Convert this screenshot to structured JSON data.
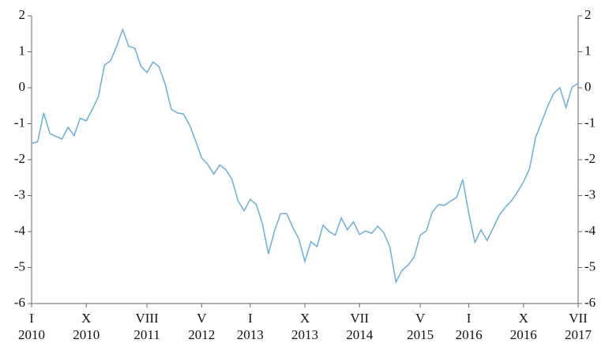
{
  "chart_data": {
    "type": "line",
    "x": [
      "2010-01",
      "2010-02",
      "2010-03",
      "2010-04",
      "2010-05",
      "2010-06",
      "2010-07",
      "2010-08",
      "2010-09",
      "2010-10",
      "2010-11",
      "2010-12",
      "2011-01",
      "2011-02",
      "2011-03",
      "2011-04",
      "2011-05",
      "2011-06",
      "2011-07",
      "2011-08",
      "2011-09",
      "2011-10",
      "2011-11",
      "2011-12",
      "2012-01",
      "2012-02",
      "2012-03",
      "2012-04",
      "2012-05",
      "2012-06",
      "2012-07",
      "2012-08",
      "2012-09",
      "2012-10",
      "2012-11",
      "2012-12",
      "2013-01",
      "2013-02",
      "2013-03",
      "2013-04",
      "2013-05",
      "2013-06",
      "2013-07",
      "2013-08",
      "2013-09",
      "2013-10",
      "2013-11",
      "2013-12",
      "2014-01",
      "2014-02",
      "2014-03",
      "2014-04",
      "2014-05",
      "2014-06",
      "2014-07",
      "2014-08",
      "2014-09",
      "2014-10",
      "2014-11",
      "2014-12",
      "2015-01",
      "2015-02",
      "2015-03",
      "2015-04",
      "2015-05",
      "2015-06",
      "2015-07",
      "2015-08",
      "2015-09",
      "2015-10",
      "2015-11",
      "2015-12",
      "2016-01",
      "2016-02",
      "2016-03",
      "2016-04",
      "2016-05",
      "2016-06",
      "2016-07",
      "2016-08",
      "2016-09",
      "2016-10",
      "2016-11",
      "2016-12",
      "2017-01",
      "2017-02",
      "2017-03",
      "2017-04",
      "2017-05",
      "2017-06",
      "2017-07"
    ],
    "series": [
      {
        "color": "#6baed6",
        "values": [
          -1.55,
          -1.5,
          -0.7,
          -1.27,
          -1.35,
          -1.43,
          -1.1,
          -1.33,
          -0.85,
          -0.92,
          -0.6,
          -0.25,
          0.63,
          0.75,
          1.15,
          1.62,
          1.15,
          1.1,
          0.6,
          0.42,
          0.72,
          0.58,
          0.1,
          -0.6,
          -0.7,
          -0.73,
          -1.03,
          -1.47,
          -1.95,
          -2.13,
          -2.4,
          -2.15,
          -2.28,
          -2.55,
          -3.15,
          -3.42,
          -3.1,
          -3.25,
          -3.78,
          -4.62,
          -3.98,
          -3.5,
          -3.5,
          -3.88,
          -4.2,
          -4.83,
          -4.28,
          -4.42,
          -3.82,
          -4.0,
          -4.1,
          -3.62,
          -3.95,
          -3.73,
          -4.08,
          -3.98,
          -4.05,
          -3.85,
          -4.03,
          -4.43,
          -5.4,
          -5.08,
          -4.93,
          -4.7,
          -4.1,
          -3.98,
          -3.45,
          -3.25,
          -3.27,
          -3.15,
          -3.05,
          -2.55,
          -3.5,
          -4.3,
          -3.95,
          -4.25,
          -3.9,
          -3.55,
          -3.32,
          -3.15,
          -2.9,
          -2.62,
          -2.25,
          -1.38,
          -0.95,
          -0.5,
          -0.15,
          0.0,
          -0.55,
          0.02,
          0.12
        ]
      }
    ],
    "ylim": [
      -6,
      2
    ],
    "yticks": [
      -6,
      -5,
      -4,
      -3,
      -2,
      -1,
      0,
      1,
      2
    ],
    "xticks": [
      {
        "value": "2010-01",
        "label": [
          "I",
          "2010"
        ]
      },
      {
        "value": "2010-10",
        "label": [
          "X",
          "2010"
        ]
      },
      {
        "value": "2011-08",
        "label": [
          "VIII",
          "2011"
        ]
      },
      {
        "value": "2012-05",
        "label": [
          "V",
          "2012"
        ]
      },
      {
        "value": "2013-01",
        "label": [
          "I",
          "2013"
        ]
      },
      {
        "value": "2013-10",
        "label": [
          "X",
          "2013"
        ]
      },
      {
        "value": "2014-07",
        "label": [
          "VII",
          "2014"
        ]
      },
      {
        "value": "2015-05",
        "label": [
          "V",
          "2015"
        ]
      },
      {
        "value": "2016-01",
        "label": [
          "I",
          "2016"
        ]
      },
      {
        "value": "2016-10",
        "label": [
          "X",
          "2016"
        ]
      },
      {
        "value": "2017-07",
        "label": [
          "VII",
          "2017"
        ]
      }
    ]
  }
}
